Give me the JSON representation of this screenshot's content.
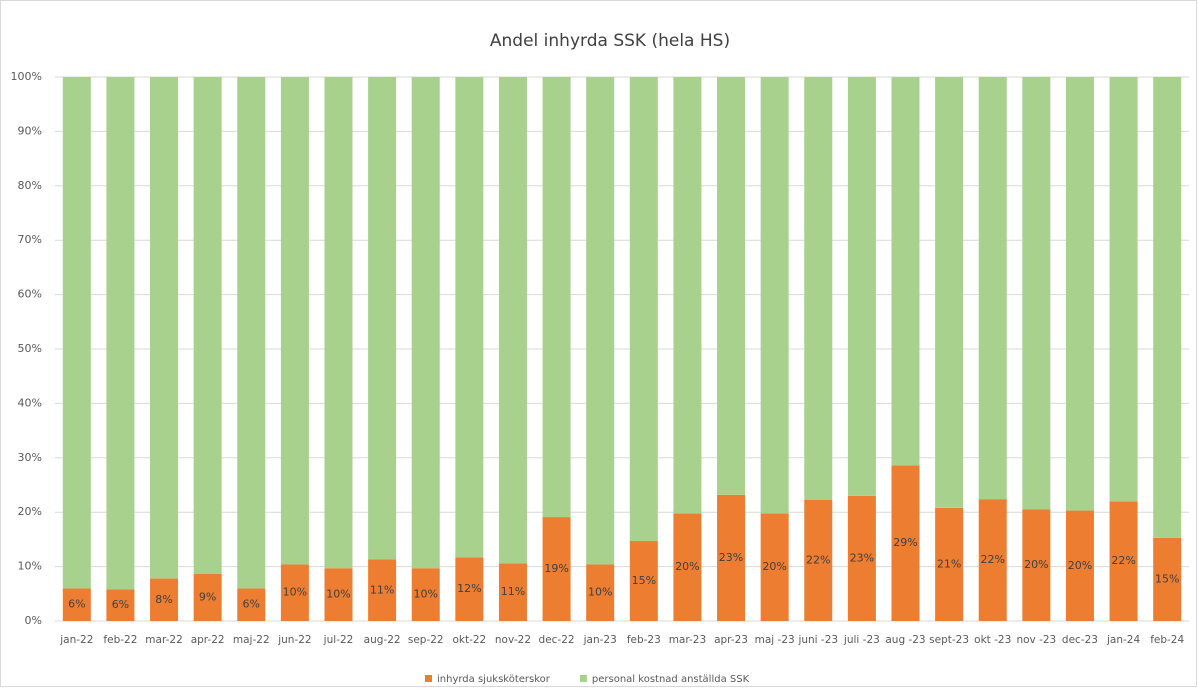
{
  "chart_data": {
    "type": "stacked_bar",
    "title": "Andel inhyrda SSK (hela HS)",
    "categories": [
      "jan-22",
      "feb-22",
      "mar-22",
      "apr-22",
      "maj-22",
      "jun-22",
      "jul-22",
      "aug-22",
      "sep-22",
      "okt-22",
      "nov-22",
      "dec-22",
      "jan-23",
      "feb-23",
      "mar-23",
      "apr-23",
      "maj -23",
      "juni -23",
      "juli -23",
      "aug -23",
      "sept-23",
      "okt -23",
      "nov -23",
      "dec-23",
      "jan-24",
      "feb-24"
    ],
    "series": [
      {
        "name": "inhyrda sjuksköterskor",
        "color": "#ed7d31",
        "values": [
          6,
          5.8,
          7.8,
          8.7,
          6,
          10.4,
          9.7,
          11.3,
          9.7,
          11.7,
          10.6,
          19.1,
          10.4,
          14.7,
          19.8,
          23.2,
          19.8,
          22.3,
          23,
          28.6,
          20.8,
          22.4,
          20.5,
          20.3,
          22,
          15.3
        ],
        "value_labels": [
          "6%",
          "6%",
          "8%",
          "9%",
          "6%",
          "10%",
          "10%",
          "11%",
          "10%",
          "12%",
          "11%",
          "19%",
          "10%",
          "15%",
          "20%",
          "23%",
          "20%",
          "22%",
          "23%",
          "29%",
          "21%",
          "22%",
          "20%",
          "20%",
          "22%",
          "15%"
        ]
      },
      {
        "name": "personal kostnad anställda SSK",
        "color": "#a9d18e",
        "values": [
          94,
          94.2,
          92.2,
          91.3,
          94,
          89.6,
          90.3,
          88.7,
          90.3,
          88.3,
          89.4,
          80.9,
          89.6,
          85.3,
          80.2,
          76.8,
          80.2,
          77.7,
          77,
          71.4,
          79.2,
          77.6,
          79.5,
          79.7,
          78,
          84.7
        ]
      }
    ],
    "ylim": [
      0,
      100
    ],
    "yticks": [
      {
        "value": 0,
        "label": "0%"
      },
      {
        "value": 10,
        "label": "10%"
      },
      {
        "value": 20,
        "label": "20%"
      },
      {
        "value": 30,
        "label": "30%"
      },
      {
        "value": 40,
        "label": "40%"
      },
      {
        "value": 50,
        "label": "50%"
      },
      {
        "value": 60,
        "label": "60%"
      },
      {
        "value": 70,
        "label": "70%"
      },
      {
        "value": 80,
        "label": "80%"
      },
      {
        "value": 90,
        "label": "90%"
      },
      {
        "value": 100,
        "label": "100%"
      }
    ],
    "legend": "bottom"
  }
}
